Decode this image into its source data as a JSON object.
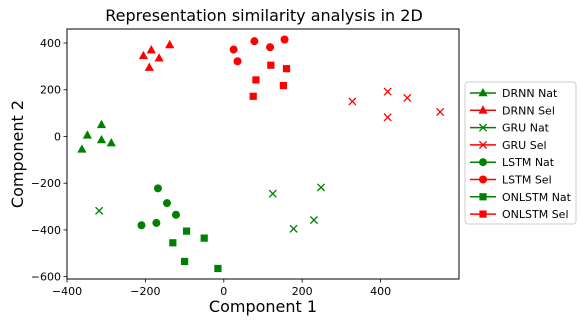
{
  "chart_data": {
    "type": "scatter",
    "title": "Representation similarity analysis in 2D",
    "xlabel": "Component 1",
    "ylabel": "Component 2",
    "xlim": [
      -400,
      600
    ],
    "ylim": [
      -610,
      460
    ],
    "xticks": [
      -400,
      -200,
      0,
      200,
      400
    ],
    "yticks": [
      -600,
      -400,
      -200,
      0,
      200,
      400
    ],
    "xtick_labels": [
      "−400",
      "−200",
      "0",
      "200",
      "400"
    ],
    "ytick_labels": [
      "−600",
      "−400",
      "−200",
      "0",
      "200",
      "400"
    ],
    "grid": false,
    "legend_position": "right",
    "colors": {
      "Nat": "#008000",
      "Sel": "#ff0000"
    },
    "series": [
      {
        "name": "DRNN Nat",
        "marker": "triangle",
        "color": "#008000",
        "points": [
          [
            -362,
            -55
          ],
          [
            -348,
            5
          ],
          [
            -312,
            50
          ],
          [
            -312,
            -15
          ],
          [
            -287,
            -28
          ]
        ]
      },
      {
        "name": "DRNN Sel",
        "marker": "triangle",
        "color": "#ff0000",
        "points": [
          [
            -205,
            345
          ],
          [
            -185,
            370
          ],
          [
            -190,
            295
          ],
          [
            -165,
            335
          ],
          [
            -138,
            392
          ]
        ]
      },
      {
        "name": "GRU Nat",
        "marker": "x",
        "color": "#008000",
        "points": [
          [
            -318,
            -318
          ],
          [
            125,
            -245
          ],
          [
            178,
            -395
          ],
          [
            230,
            -358
          ],
          [
            248,
            -218
          ]
        ]
      },
      {
        "name": "GRU Sel",
        "marker": "x",
        "color": "#ff0000",
        "points": [
          [
            328,
            150
          ],
          [
            418,
            192
          ],
          [
            418,
            82
          ],
          [
            468,
            165
          ],
          [
            552,
            105
          ]
        ]
      },
      {
        "name": "LSTM Nat",
        "marker": "circle",
        "color": "#008000",
        "points": [
          [
            -210,
            -380
          ],
          [
            -172,
            -370
          ],
          [
            -168,
            -222
          ],
          [
            -145,
            -285
          ],
          [
            -122,
            -335
          ]
        ]
      },
      {
        "name": "LSTM Sel",
        "marker": "circle",
        "color": "#ff0000",
        "points": [
          [
            25,
            372
          ],
          [
            35,
            322
          ],
          [
            78,
            408
          ],
          [
            118,
            382
          ],
          [
            155,
            415
          ]
        ]
      },
      {
        "name": "ONLSTM Nat",
        "marker": "square",
        "color": "#008000",
        "points": [
          [
            -130,
            -455
          ],
          [
            -100,
            -535
          ],
          [
            -95,
            -405
          ],
          [
            -50,
            -435
          ],
          [
            -15,
            -565
          ]
        ]
      },
      {
        "name": "ONLSTM Sel",
        "marker": "square",
        "color": "#ff0000",
        "points": [
          [
            75,
            172
          ],
          [
            82,
            242
          ],
          [
            120,
            305
          ],
          [
            152,
            218
          ],
          [
            160,
            290
          ]
        ]
      }
    ]
  }
}
